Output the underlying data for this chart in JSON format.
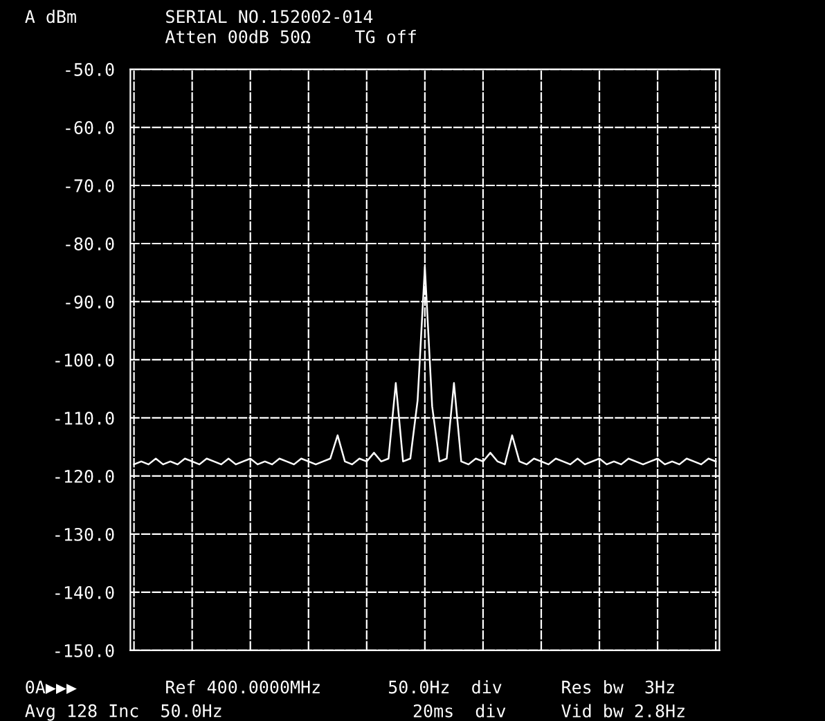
{
  "chart_data": {
    "type": "line",
    "xlabel": null,
    "annotations": [
      "A dBm",
      "SERIAL NO.152002-014",
      "Atten 00dB 50Ω",
      "TG off",
      "0A▶▶▶",
      "Ref 400.0000MHz",
      "50.0Hz  div",
      "Res bw  3Hz",
      "Avg 128 Inc  50.0Hz",
      "20ms  div",
      "Vid bw 2.8Hz"
    ],
    "categories": [
      null,
      null,
      null,
      null,
      null,
      null,
      null,
      null,
      null,
      null,
      null,
      null,
      null,
      null,
      null,
      null,
      null,
      null,
      null,
      null,
      null,
      null,
      null,
      null,
      null,
      null,
      null,
      null,
      null,
      null,
      null,
      null,
      null,
      null,
      null,
      null,
      null,
      null,
      null,
      null,
      null,
      null,
      null,
      null,
      null,
      null,
      null,
      null,
      null,
      null,
      null,
      null,
      null,
      null,
      null,
      null,
      null,
      null,
      null,
      null,
      null,
      null,
      null,
      null,
      null,
      null,
      null,
      null,
      null,
      null,
      null,
      null,
      null,
      null,
      null,
      null,
      null,
      null,
      null,
      null,
      null
    ],
    "series": [
      {
        "color": "#ffffff",
        "values": [
          -118,
          -117.5,
          -118,
          -117,
          -118,
          -117.5,
          -118,
          -117,
          -117.5,
          -118,
          -117,
          -117.5,
          -118,
          -117,
          -118,
          -117.5,
          -117,
          -118,
          -117.5,
          -118,
          -117,
          -117.5,
          -118,
          -117,
          -117.5,
          -118,
          -117.5,
          -117,
          -113,
          -117.5,
          -118,
          -117,
          -117.5,
          -116,
          -117.5,
          -117,
          -104,
          -117.5,
          -117,
          -107,
          -84,
          -108,
          -117.5,
          -117,
          -104,
          -117.5,
          -118,
          -117,
          -117.5,
          -116,
          -117.5,
          -118,
          -113,
          -117.5,
          -118,
          -117,
          -117.5,
          -118,
          -117,
          -117.5,
          -118,
          -117,
          -118,
          -117.5,
          -117,
          -118,
          -117.5,
          -118,
          -117,
          -117.5,
          -118,
          -117.5,
          -117,
          -118,
          -117.5,
          -118,
          -117,
          -117.5,
          -118,
          -117,
          -117.5
        ]
      }
    ],
    "ylim": [
      -150,
      -50
    ],
    "yticks": [
      {
        "value": -50,
        "label": "-50.0"
      },
      {
        "value": -60,
        "label": "-60.0"
      },
      {
        "value": -70,
        "label": "-70.0"
      },
      {
        "value": -80,
        "label": "-80.0"
      },
      {
        "value": -90,
        "label": "-90.0"
      },
      {
        "value": -100,
        "label": "-100.0"
      },
      {
        "value": -110,
        "label": "-110.0"
      },
      {
        "value": -120,
        "label": "-120.0"
      },
      {
        "value": -130,
        "label": "-130.0"
      },
      {
        "value": -140,
        "label": "-140.0"
      },
      {
        "value": -150,
        "label": "-150.0"
      }
    ],
    "grid": true,
    "tick_labels": "y",
    "marker": "none",
    "line_style": "solid"
  }
}
